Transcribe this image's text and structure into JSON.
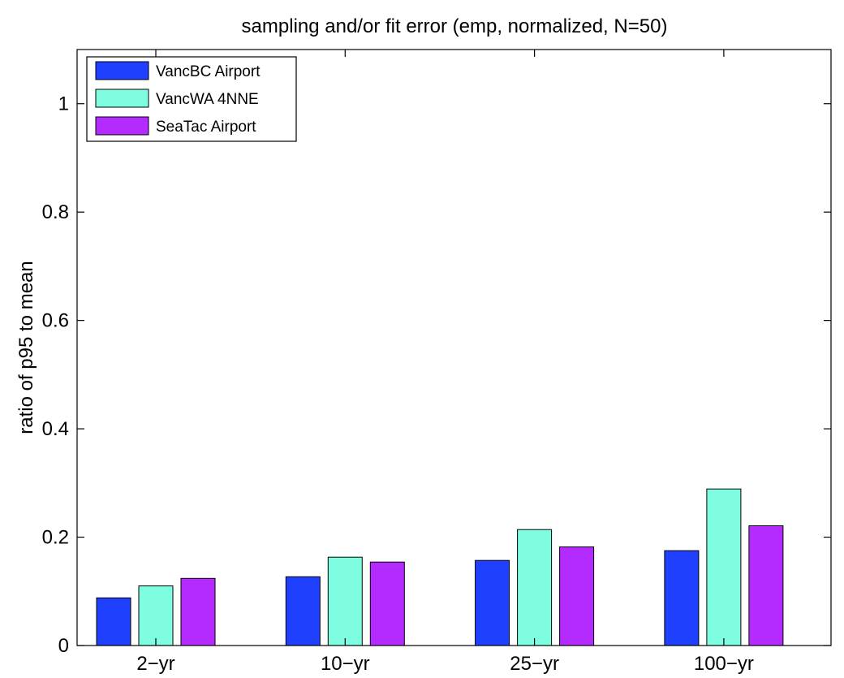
{
  "chart_data": {
    "type": "bar",
    "title": "sampling and/or fit error (emp, normalized, N=50)",
    "xlabel": "",
    "ylabel": "ratio of p95 to mean",
    "categories": [
      "2−yr",
      "10−yr",
      "25−yr",
      "100−yr"
    ],
    "ylim": [
      0,
      1.1
    ],
    "yticks": [
      0,
      0.2,
      0.4,
      0.6,
      0.8,
      1
    ],
    "ytick_labels": [
      "0",
      "0.2",
      "0.4",
      "0.6",
      "0.8",
      "1"
    ],
    "grid": false,
    "legend_position": "top-left",
    "series": [
      {
        "name": "VancBC Airport",
        "color": "#2040ff",
        "values": [
          0.088,
          0.127,
          0.157,
          0.175
        ]
      },
      {
        "name": "VancWA 4NNE",
        "color": "#7ffde0",
        "values": [
          0.11,
          0.163,
          0.214,
          0.289
        ]
      },
      {
        "name": "SeaTac Airport",
        "color": "#b42bff",
        "values": [
          0.124,
          0.154,
          0.182,
          0.221
        ]
      }
    ]
  }
}
